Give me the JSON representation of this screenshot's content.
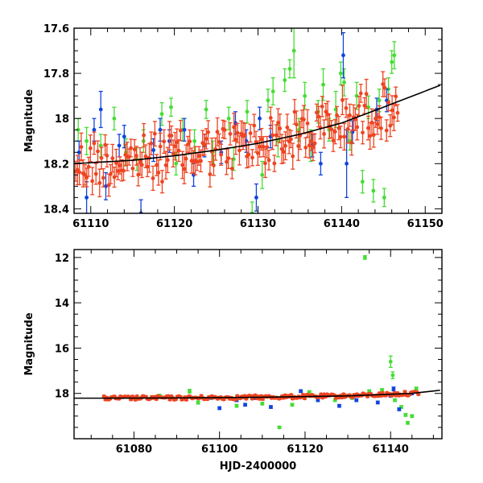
{
  "chart_data": [
    {
      "type": "scatter",
      "title": "",
      "xlabel": "",
      "ylabel": "Magnitude",
      "xlim": [
        61108,
        61152
      ],
      "ylim": [
        18.42,
        17.6
      ],
      "y_inverted": true,
      "xticks_major": [
        61110,
        61120,
        61130,
        61140,
        61150
      ],
      "yticks_major": [
        17.6,
        17.8,
        18,
        18.2,
        18.4
      ],
      "tick_labels_x": [
        "61110",
        "61120",
        "61130",
        "61140",
        "61150"
      ],
      "tick_labels_y": [
        "17.6",
        "17.8",
        "18",
        "18.2",
        "18.4"
      ],
      "colors": {
        "red": "#ee4422",
        "green": "#44dd33",
        "blue": "#1144dd",
        "fit": "#000000"
      },
      "fit": {
        "name": "trend",
        "x": [
          61108,
          61115,
          61120,
          61125,
          61130,
          61135,
          61140,
          61145,
          61152
        ],
        "y": [
          18.2,
          18.185,
          18.165,
          18.14,
          18.11,
          18.07,
          18.02,
          17.95,
          17.85
        ]
      },
      "series": [
        {
          "name": "green",
          "points": [
            [
              61108.5,
              18.05,
              0.05
            ],
            [
              61109.5,
              18.1,
              0.06
            ],
            [
              61111.2,
              18.12,
              0.05
            ],
            [
              61112.8,
              18.0,
              0.05
            ],
            [
              61114.2,
              18.15,
              0.06
            ],
            [
              61115.5,
              18.18,
              0.05
            ],
            [
              61116.3,
              18.1,
              0.05
            ],
            [
              61118.5,
              17.98,
              0.05
            ],
            [
              61119.6,
              17.95,
              0.04
            ],
            [
              61120.2,
              18.2,
              0.05
            ],
            [
              61121.0,
              18.05,
              0.05
            ],
            [
              61122.4,
              18.1,
              0.05
            ],
            [
              61123.8,
              17.96,
              0.04
            ],
            [
              61124.6,
              18.15,
              0.05
            ],
            [
              61126.5,
              18.0,
              0.05
            ],
            [
              61127.1,
              18.18,
              0.05
            ],
            [
              61128.7,
              17.97,
              0.05
            ],
            [
              61129.3,
              18.42,
              0.05
            ],
            [
              61130.5,
              18.25,
              0.06
            ],
            [
              61131.2,
              17.92,
              0.05
            ],
            [
              61131.8,
              17.88,
              0.06
            ],
            [
              61132.4,
              18.1,
              0.07
            ],
            [
              61133.2,
              17.83,
              0.05
            ],
            [
              61133.8,
              17.78,
              0.04
            ],
            [
              61134.3,
              17.7,
              0.12
            ],
            [
              61134.9,
              18.05,
              0.05
            ],
            [
              61135.6,
              17.9,
              0.06
            ],
            [
              61136.3,
              18.12,
              0.07
            ],
            [
              61137.2,
              17.97,
              0.05
            ],
            [
              61137.8,
              17.85,
              0.07
            ],
            [
              61138.5,
              18.05,
              0.05
            ],
            [
              61139.3,
              17.96,
              0.08
            ],
            [
              61139.9,
              17.8,
              0.05
            ],
            [
              61140.3,
              17.84,
              0.06
            ],
            [
              61141.0,
              18.1,
              0.04
            ],
            [
              61141.8,
              17.9,
              0.06
            ],
            [
              61142.5,
              18.28,
              0.05
            ],
            [
              61143.2,
              17.95,
              0.05
            ],
            [
              61143.8,
              18.32,
              0.05
            ],
            [
              61144.5,
              17.92,
              0.05
            ],
            [
              61145.1,
              18.35,
              0.04
            ],
            [
              61145.6,
              17.87,
              0.05
            ],
            [
              61146.0,
              17.75,
              0.05
            ],
            [
              61146.3,
              17.72,
              0.06
            ]
          ]
        },
        {
          "name": "blue",
          "points": [
            [
              61108.6,
              18.15,
              0.05
            ],
            [
              61109.5,
              18.35,
              0.07
            ],
            [
              61110.4,
              18.05,
              0.05
            ],
            [
              61111.2,
              17.96,
              0.08
            ],
            [
              61111.8,
              18.3,
              0.06
            ],
            [
              61113.4,
              18.12,
              0.05
            ],
            [
              61114.0,
              18.08,
              0.05
            ],
            [
              61116.0,
              18.42,
              0.06
            ],
            [
              61117.5,
              18.14,
              0.05
            ],
            [
              61118.3,
              18.05,
              0.05
            ],
            [
              61119.4,
              18.1,
              0.05
            ],
            [
              61121.2,
              18.05,
              0.05
            ],
            [
              61122.3,
              18.25,
              0.05
            ],
            [
              61123.6,
              18.12,
              0.05
            ],
            [
              61125.6,
              18.15,
              0.05
            ],
            [
              61127.3,
              18.02,
              0.05
            ],
            [
              61128.6,
              18.1,
              0.05
            ],
            [
              61129.8,
              18.35,
              0.06
            ],
            [
              61130.2,
              18.0,
              0.05
            ],
            [
              61131.5,
              18.08,
              0.05
            ],
            [
              61136.5,
              18.12,
              0.05
            ],
            [
              61137.5,
              18.2,
              0.05
            ],
            [
              61140.2,
              17.72,
              0.1
            ],
            [
              61140.6,
              18.2,
              0.15
            ],
            [
              61141.3,
              18.06,
              0.05
            ],
            [
              61144.2,
              17.96,
              0.05
            ],
            [
              61145.4,
              17.92,
              0.05
            ]
          ]
        },
        {
          "name": "red",
          "points": "generated",
          "note": "dense ~1 per 0.2 d, scatter ±0.12 mag around trend, err ~0.05"
        }
      ]
    },
    {
      "type": "scatter",
      "title": "",
      "xlabel": "HJD-2400000",
      "ylabel": "Magnitude",
      "xlim": [
        61066,
        61152
      ],
      "ylim": [
        20.0,
        11.65
      ],
      "y_inverted": true,
      "xticks_major": [
        61080,
        61100,
        61120,
        61140
      ],
      "yticks_major": [
        12,
        14,
        16,
        18
      ],
      "tick_labels_x": [
        "61080",
        "61100",
        "61120",
        "61140"
      ],
      "tick_labels_y": [
        "12",
        "14",
        "16",
        "18"
      ],
      "fit": {
        "name": "trend",
        "x": [
          61073,
          61090,
          61110,
          61130,
          61145,
          61152
        ],
        "y": [
          18.21,
          18.2,
          18.17,
          18.11,
          18.0,
          17.85
        ]
      },
      "series": [
        {
          "name": "green",
          "points": [
            [
              61086,
              18.1,
              0.06
            ],
            [
              61093,
              17.9,
              0.08
            ],
            [
              61095,
              18.4,
              0.07
            ],
            [
              61104,
              18.55,
              0.06
            ],
            [
              61110,
              18.45,
              0.06
            ],
            [
              61114,
              19.5,
              0.05
            ],
            [
              61117,
              18.5,
              0.06
            ],
            [
              61121,
              17.95,
              0.07
            ],
            [
              61127,
              18.3,
              0.06
            ],
            [
              61131,
              18.2,
              0.06
            ],
            [
              61134,
              12.0,
              0.08
            ],
            [
              61135,
              17.9,
              0.06
            ],
            [
              61138,
              17.85,
              0.06
            ],
            [
              61140,
              16.6,
              0.25
            ],
            [
              61140.5,
              17.2,
              0.15
            ],
            [
              61141,
              18.3,
              0.06
            ],
            [
              61142.5,
              18.6,
              0.06
            ],
            [
              61143.5,
              18.95,
              0.06
            ],
            [
              61144,
              19.3,
              0.06
            ],
            [
              61145,
              19.0,
              0.06
            ],
            [
              61146,
              17.8,
              0.08
            ]
          ]
        },
        {
          "name": "blue",
          "points": [
            [
              61098,
              18.2,
              0.06
            ],
            [
              61100,
              18.65,
              0.06
            ],
            [
              61104,
              18.3,
              0.06
            ],
            [
              61106,
              18.5,
              0.06
            ],
            [
              61108,
              18.2,
              0.07
            ],
            [
              61112,
              18.6,
              0.06
            ],
            [
              61119,
              17.9,
              0.06
            ],
            [
              61123,
              18.3,
              0.06
            ],
            [
              61128,
              18.55,
              0.06
            ],
            [
              61132,
              18.3,
              0.06
            ],
            [
              61137,
              18.4,
              0.06
            ],
            [
              61140,
              18.1,
              0.07
            ],
            [
              61140.7,
              17.8,
              0.08
            ],
            [
              61142,
              18.7,
              0.06
            ],
            [
              61145,
              18.0,
              0.06
            ]
          ]
        },
        {
          "name": "red",
          "points": "generated",
          "note": "dense from 61073 to 61147, scatter ±0.15 mag around trend"
        }
      ]
    }
  ]
}
